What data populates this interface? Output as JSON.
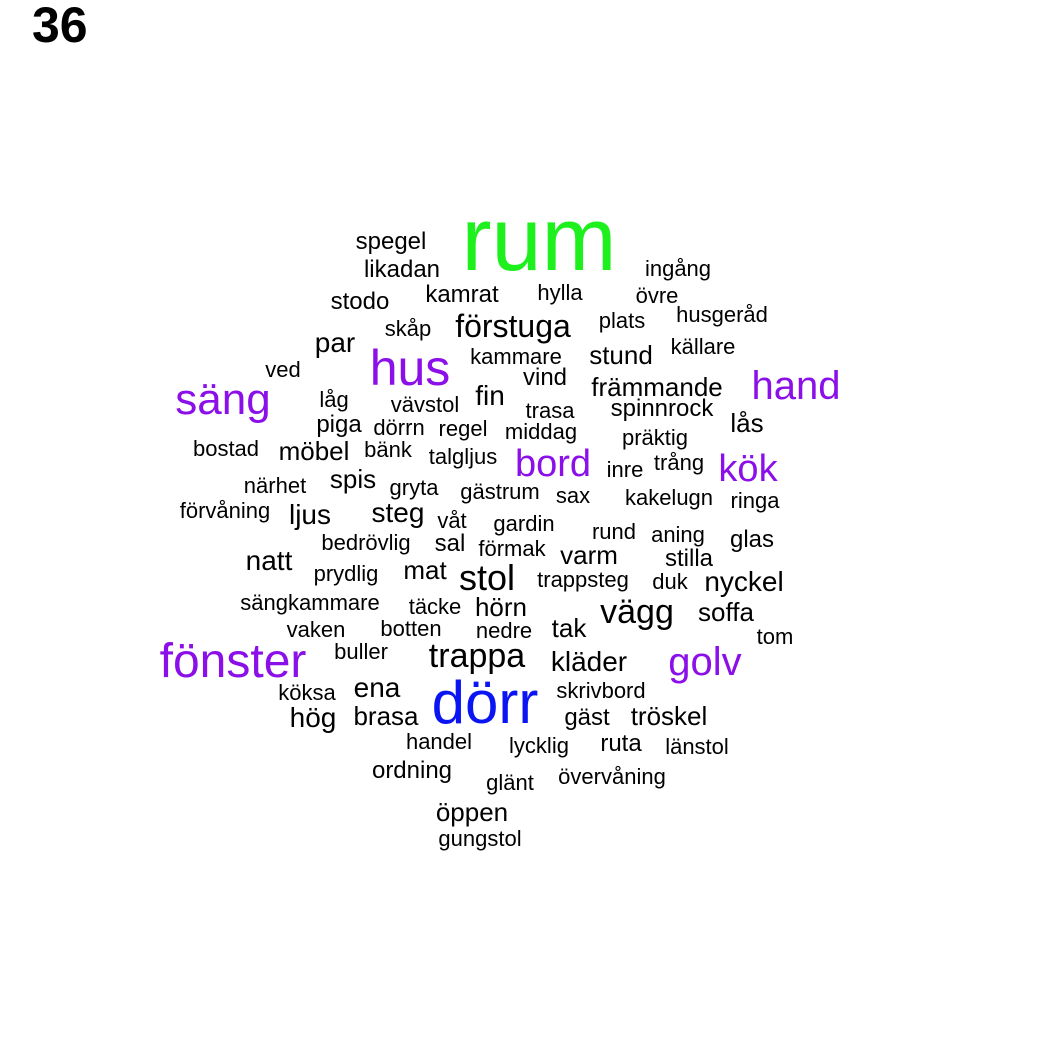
{
  "title": "36",
  "colors": {
    "black": "#000000",
    "purple": "#8b0fe8",
    "green": "#1ef01e",
    "blue": "#0b14f2"
  },
  "words": [
    {
      "text": "rum",
      "color": "green"
    },
    {
      "text": "dörr",
      "color": "blue"
    },
    {
      "text": "fönster",
      "color": "purple"
    },
    {
      "text": "hus",
      "color": "purple"
    },
    {
      "text": "säng",
      "color": "purple"
    },
    {
      "text": "hand",
      "color": "purple"
    },
    {
      "text": "golv",
      "color": "purple"
    },
    {
      "text": "bord",
      "color": "purple"
    },
    {
      "text": "kök",
      "color": "purple"
    },
    {
      "text": "spegel",
      "color": "black"
    },
    {
      "text": "likadan",
      "color": "black"
    },
    {
      "text": "ingång",
      "color": "black"
    },
    {
      "text": "stodo",
      "color": "black"
    },
    {
      "text": "kamrat",
      "color": "black"
    },
    {
      "text": "hylla",
      "color": "black"
    },
    {
      "text": "övre",
      "color": "black"
    },
    {
      "text": "husgeråd",
      "color": "black"
    },
    {
      "text": "skåp",
      "color": "black"
    },
    {
      "text": "förstuga",
      "color": "black"
    },
    {
      "text": "plats",
      "color": "black"
    },
    {
      "text": "par",
      "color": "black"
    },
    {
      "text": "källare",
      "color": "black"
    },
    {
      "text": "kammare",
      "color": "black"
    },
    {
      "text": "stund",
      "color": "black"
    },
    {
      "text": "ved",
      "color": "black"
    },
    {
      "text": "vind",
      "color": "black"
    },
    {
      "text": "främmande",
      "color": "black"
    },
    {
      "text": "fin",
      "color": "black"
    },
    {
      "text": "låg",
      "color": "black"
    },
    {
      "text": "vävstol",
      "color": "black"
    },
    {
      "text": "trasa",
      "color": "black"
    },
    {
      "text": "spinnrock",
      "color": "black"
    },
    {
      "text": "lås",
      "color": "black"
    },
    {
      "text": "piga",
      "color": "black"
    },
    {
      "text": "dörrn",
      "color": "black"
    },
    {
      "text": "regel",
      "color": "black"
    },
    {
      "text": "middag",
      "color": "black"
    },
    {
      "text": "präktig",
      "color": "black"
    },
    {
      "text": "bostad",
      "color": "black"
    },
    {
      "text": "möbel",
      "color": "black"
    },
    {
      "text": "bänk",
      "color": "black"
    },
    {
      "text": "talgljus",
      "color": "black"
    },
    {
      "text": "inre",
      "color": "black"
    },
    {
      "text": "trång",
      "color": "black"
    },
    {
      "text": "närhet",
      "color": "black"
    },
    {
      "text": "spis",
      "color": "black"
    },
    {
      "text": "gryta",
      "color": "black"
    },
    {
      "text": "gästrum",
      "color": "black"
    },
    {
      "text": "sax",
      "color": "black"
    },
    {
      "text": "kakelugn",
      "color": "black"
    },
    {
      "text": "ringa",
      "color": "black"
    },
    {
      "text": "förvåning",
      "color": "black"
    },
    {
      "text": "ljus",
      "color": "black"
    },
    {
      "text": "steg",
      "color": "black"
    },
    {
      "text": "våt",
      "color": "black"
    },
    {
      "text": "gardin",
      "color": "black"
    },
    {
      "text": "rund",
      "color": "black"
    },
    {
      "text": "aning",
      "color": "black"
    },
    {
      "text": "glas",
      "color": "black"
    },
    {
      "text": "bedrövlig",
      "color": "black"
    },
    {
      "text": "sal",
      "color": "black"
    },
    {
      "text": "förmak",
      "color": "black"
    },
    {
      "text": "varm",
      "color": "black"
    },
    {
      "text": "stilla",
      "color": "black"
    },
    {
      "text": "natt",
      "color": "black"
    },
    {
      "text": "prydlig",
      "color": "black"
    },
    {
      "text": "mat",
      "color": "black"
    },
    {
      "text": "stol",
      "color": "black"
    },
    {
      "text": "trappsteg",
      "color": "black"
    },
    {
      "text": "duk",
      "color": "black"
    },
    {
      "text": "nyckel",
      "color": "black"
    },
    {
      "text": "sängkammare",
      "color": "black"
    },
    {
      "text": "täcke",
      "color": "black"
    },
    {
      "text": "hörn",
      "color": "black"
    },
    {
      "text": "vägg",
      "color": "black"
    },
    {
      "text": "soffa",
      "color": "black"
    },
    {
      "text": "vaken",
      "color": "black"
    },
    {
      "text": "botten",
      "color": "black"
    },
    {
      "text": "nedre",
      "color": "black"
    },
    {
      "text": "tak",
      "color": "black"
    },
    {
      "text": "tom",
      "color": "black"
    },
    {
      "text": "buller",
      "color": "black"
    },
    {
      "text": "trappa",
      "color": "black"
    },
    {
      "text": "kläder",
      "color": "black"
    },
    {
      "text": "köksa",
      "color": "black"
    },
    {
      "text": "ena",
      "color": "black"
    },
    {
      "text": "skrivbord",
      "color": "black"
    },
    {
      "text": "hög",
      "color": "black"
    },
    {
      "text": "brasa",
      "color": "black"
    },
    {
      "text": "gäst",
      "color": "black"
    },
    {
      "text": "tröskel",
      "color": "black"
    },
    {
      "text": "handel",
      "color": "black"
    },
    {
      "text": "lycklig",
      "color": "black"
    },
    {
      "text": "ruta",
      "color": "black"
    },
    {
      "text": "länstol",
      "color": "black"
    },
    {
      "text": "ordning",
      "color": "black"
    },
    {
      "text": "glänt",
      "color": "black"
    },
    {
      "text": "övervåning",
      "color": "black"
    },
    {
      "text": "öppen",
      "color": "black"
    },
    {
      "text": "gungstol",
      "color": "black"
    }
  ]
}
